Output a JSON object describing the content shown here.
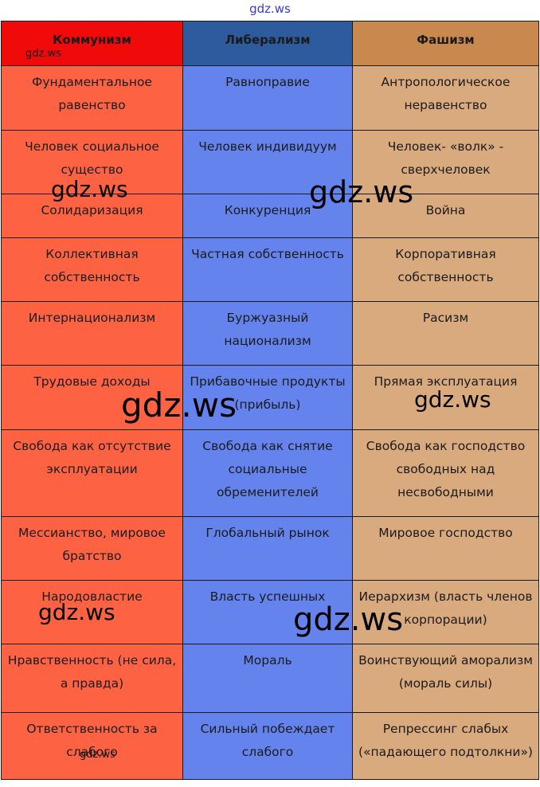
{
  "watermark": "gdz.ws",
  "headers": [
    "Коммунизм",
    "Либерализм",
    "Фашизм"
  ],
  "rows": [
    [
      "Фундаментальное равенство",
      "Равноправие",
      "Антропологическое неравенство"
    ],
    [
      "Человек социальное существо",
      "Человек индивидуум",
      "Человек- «волк» - сверхчеловек"
    ],
    [
      "Солидаризация",
      "Конкуренция",
      "Война"
    ],
    [
      "Коллективная собственность",
      "Частная собственность",
      "Корпоративная собственность"
    ],
    [
      "Интернационализм",
      "Буржуазный национализм",
      "Расизм"
    ],
    [
      "Трудовые доходы",
      "Прибавочные продукты (прибыль)",
      "Прямая эксплуатация"
    ],
    [
      "Свобода как отсутствие эксплуатации",
      "Свобода как снятие социальные обременителей",
      "Свобода как господство свободных над несвободными"
    ],
    [
      "Мессианство, мировое братство",
      "Глобальный рынок",
      "Мировое господство"
    ],
    [
      "Народовластие",
      "Власть успешных",
      "Иерархизм (власть членов корпорации)"
    ],
    [
      "Нравственность (не сила, а правда)",
      "Мораль",
      "Воинствующий аморализм (мораль силы)"
    ],
    [
      "Ответственность за слабого",
      "Сильный побеждает слабого",
      "Репрессинг слабых («падающего подтолкни»)"
    ]
  ]
}
